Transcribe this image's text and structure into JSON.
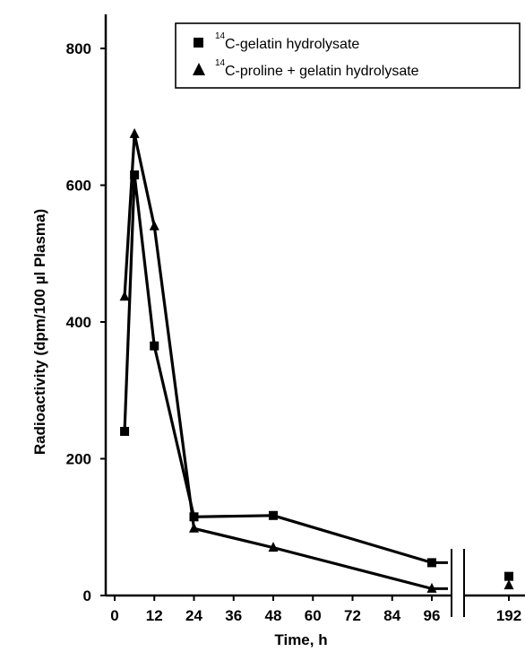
{
  "chart_data": {
    "type": "line",
    "title": "",
    "xlabel": "Time, h",
    "ylabel": "Radioactivity (dpm/100 µl Plasma)",
    "xlim": [
      0,
      192
    ],
    "ylim": [
      0,
      800
    ],
    "x_ticks": [
      0,
      12,
      24,
      36,
      48,
      60,
      72,
      84,
      96,
      192
    ],
    "x_tick_labels": [
      "0",
      "12",
      "24",
      "36",
      "48",
      "60",
      "72",
      "84",
      "96",
      "192"
    ],
    "y_ticks": [
      0,
      200,
      400,
      600,
      800
    ],
    "y_tick_labels": [
      "0",
      "200",
      "400",
      "600",
      "800"
    ],
    "axis_break": "between 96 and 192",
    "legend_position": "top-right",
    "series": [
      {
        "name": "C-gelatin hydrolysate",
        "name_superscript": "14",
        "marker": "square",
        "x": [
          3,
          6,
          12,
          24,
          48,
          96,
          192
        ],
        "y": [
          240,
          615,
          365,
          115,
          117,
          48,
          28
        ]
      },
      {
        "name": "C-proline + gelatin hydrolysate",
        "name_superscript": "14",
        "marker": "triangle",
        "x": [
          3,
          6,
          12,
          24,
          48,
          96,
          192
        ],
        "y": [
          437,
          675,
          540,
          98,
          70,
          10,
          15
        ]
      }
    ]
  }
}
